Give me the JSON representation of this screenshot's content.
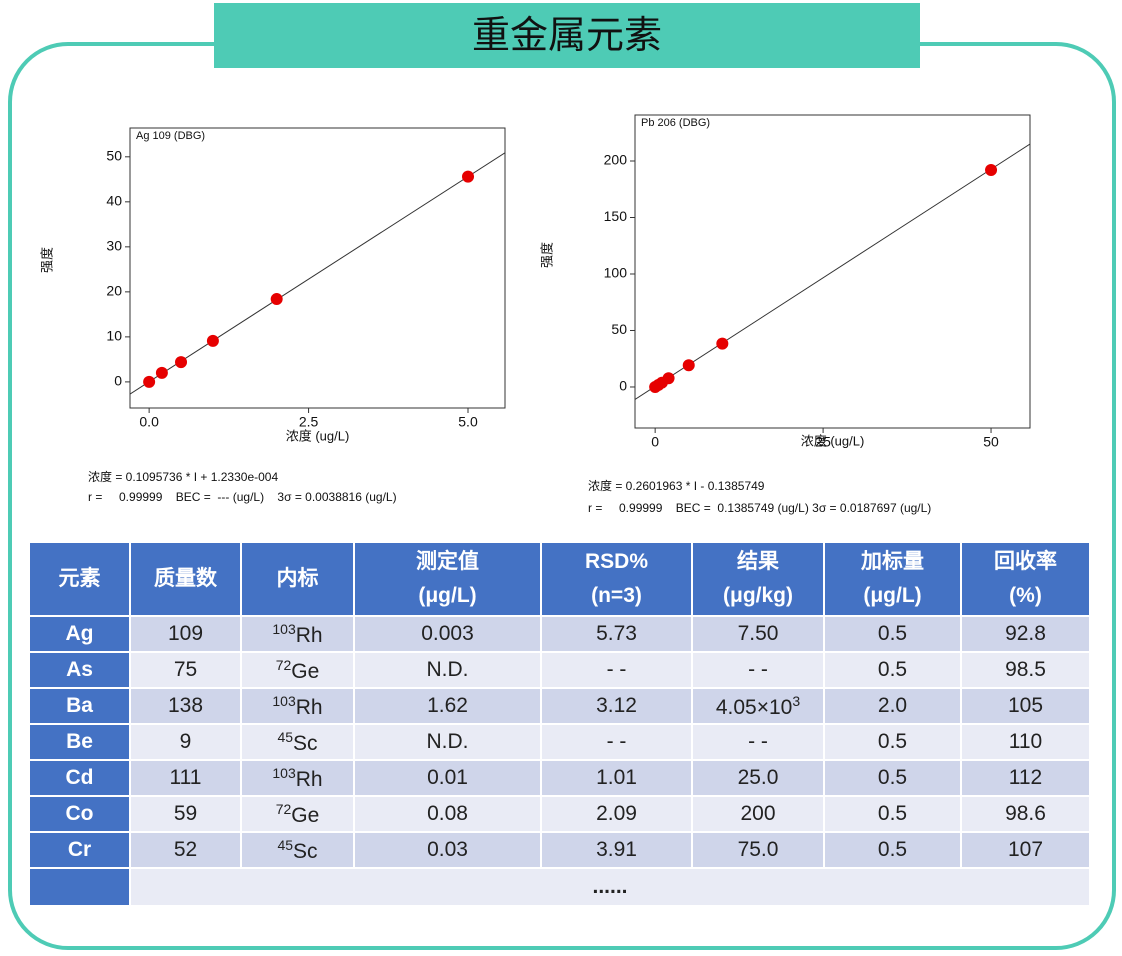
{
  "title": "重金属元素",
  "chart_data": [
    {
      "type": "scatter",
      "label": "Ag 109 (DBG)",
      "x_label": "浓度 (ug/L)",
      "y_label": "强度",
      "x": [
        0,
        0.2,
        0.5,
        1.0,
        2.0,
        5.0
      ],
      "values": [
        0,
        2.0,
        4.4,
        9.1,
        18.4,
        45.6
      ],
      "color": "#e60000",
      "fit_line": {
        "x": [
          -0.3,
          5.58
        ],
        "values": [
          -2.7,
          50.9
        ],
        "color": "#333333"
      },
      "xlim": [
        -0.3,
        5.58
      ],
      "ylim": [
        -5.8,
        56.4
      ],
      "xticks": [
        {
          "value": 0,
          "label": "0.0"
        },
        2.5,
        {
          "value": 5,
          "label": "5.0"
        }
      ],
      "yticks": [
        0,
        10,
        20,
        30,
        40,
        50
      ],
      "equation": [
        "浓度 = 0.1095736 * I + 1.2330e-004",
        "r =     0.99999    BEC =  --- (ug/L)    3σ = 0.0038816 (ug/L)"
      ]
    },
    {
      "type": "scatter",
      "label": "Pb 206 (DBG)",
      "x_label": "浓度 (ug/L)",
      "y_label": "强度",
      "x": [
        0,
        0.5,
        1,
        2,
        5,
        10,
        50
      ],
      "values": [
        0,
        1.9,
        3.8,
        7.7,
        19.2,
        38.4,
        192
      ],
      "color": "#e60000",
      "fit_line": {
        "x": [
          -3.0,
          55.8
        ],
        "values": [
          -11.0,
          215
        ],
        "color": "#333333"
      },
      "xlim": [
        -3.0,
        55.8
      ],
      "ylim": [
        -36.3,
        240.7
      ],
      "xticks": [
        0,
        25,
        50
      ],
      "yticks": [
        0,
        50,
        100,
        150,
        200
      ],
      "equation": [
        "浓度 = 0.2601963 * I - 0.1385749",
        "r =     0.99999    BEC =  0.1385749 (ug/L) 3σ = 0.0187697 (ug/L)"
      ]
    }
  ],
  "table": {
    "header": [
      [
        "元素"
      ],
      [
        "质量数"
      ],
      [
        "内标"
      ],
      [
        "测定值",
        "(μg/L)"
      ],
      [
        "RSD%",
        "(n=3)"
      ],
      [
        "结果",
        "(μg/kg)"
      ],
      [
        "加标量",
        "(μg/L)"
      ],
      [
        "回收率",
        "(%)"
      ]
    ],
    "rows": [
      [
        "Ag",
        "109",
        {
          "sup": "103",
          "text": "Rh"
        },
        "0.003",
        "5.73",
        "7.50",
        "0.5",
        "92.8"
      ],
      [
        "As",
        "75",
        {
          "sup": "72",
          "text": "Ge"
        },
        "N.D.",
        "- -",
        "- -",
        "0.5",
        "98.5"
      ],
      [
        "Ba",
        "138",
        {
          "sup": "103",
          "text": "Rh"
        },
        "1.62",
        "3.12",
        {
          "text": "4.05×10",
          "sup": "3"
        },
        "2.0",
        "105"
      ],
      [
        "Be",
        "9",
        {
          "sup": "45",
          "text": "Sc"
        },
        "N.D.",
        "- -",
        "- -",
        "0.5",
        "110"
      ],
      [
        "Cd",
        "111",
        {
          "sup": "103",
          "text": "Rh"
        },
        "0.01",
        "1.01",
        "25.0",
        "0.5",
        "112"
      ],
      [
        "Co",
        "59",
        {
          "sup": "72",
          "text": "Ge"
        },
        "0.08",
        "2.09",
        "200",
        "0.5",
        "98.6"
      ],
      [
        "Cr",
        "52",
        {
          "sup": "45",
          "text": "Sc"
        },
        "0.03",
        "3.91",
        "75.0",
        "0.5",
        "107"
      ]
    ],
    "ellipsis": "......"
  }
}
